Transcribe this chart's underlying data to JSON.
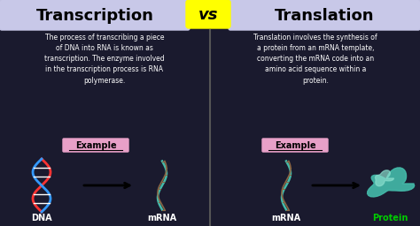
{
  "bg_color": "#1a1a2e",
  "left_title": "Transcription",
  "right_title": "Translation",
  "vs_text": "vs",
  "vs_bg": "#ffff00",
  "title_bg": "#c8c8e8",
  "left_desc": "The process of transcribing a piece\nof DNA into RNA is known as\ntranscription. The enzyme involved\nin the transcription process is RNA\npolymerase.",
  "right_desc": "Translation involves the synthesis of\na protein from an mRNA template,\nconverting the mRNA code into an\namino acid sequence within a\nprotein.",
  "example_label": "Example",
  "example_bg": "#e8a0c8",
  "dna_color1": "#ff3333",
  "dna_color2": "#3399ff",
  "mrna_color": "#44bbaa",
  "mrna_rung_color": "#886644",
  "protein_color1": "#44bbaa",
  "protein_color2": "#88ddcc",
  "white": "#ffffff",
  "black": "#000000",
  "green": "#00cc00",
  "divider_color": "#555555"
}
